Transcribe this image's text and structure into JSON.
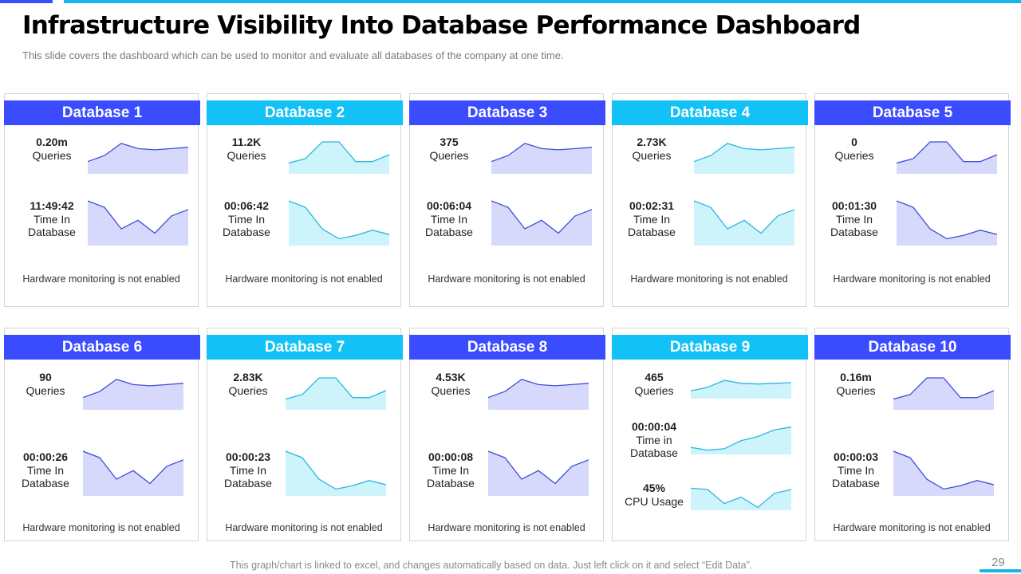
{
  "title": "Infrastructure Visibility Into Database Performance Dashboard",
  "subtitle": "This slide covers the dashboard which can be used to monitor and evaluate all databases of the company at one time.",
  "footer_note": "This graph/chart is linked to excel, and changes automatically based on data. Just left click on it and select “Edit Data”.",
  "page_number": "29",
  "colors": {
    "accent_dark": "#3b4cff",
    "accent_light": "#12c1f5",
    "fill_dark": "#d6d9fb",
    "fill_light": "#cdf3fb",
    "line_dark": "#3f4fd6",
    "line_light": "#29b8e0"
  },
  "sparkline_shapes": {
    "queries_a": [
      0.35,
      0.55,
      0.95,
      0.78,
      0.74,
      0.78,
      0.82
    ],
    "queries_b": [
      0.3,
      0.45,
      1.0,
      1.0,
      0.35,
      0.35,
      0.58
    ],
    "time_a": [
      1.0,
      0.85,
      0.35,
      0.55,
      0.25,
      0.65,
      0.8
    ],
    "time_b": [
      1.0,
      0.85,
      0.35,
      0.12,
      0.2,
      0.32,
      0.22
    ],
    "time_up": [
      0.2,
      0.1,
      0.15,
      0.45,
      0.6,
      0.85,
      0.95
    ],
    "cpu": [
      0.8,
      0.75,
      0.2,
      0.45,
      0.05,
      0.6,
      0.75
    ]
  },
  "databases": [
    {
      "name": "Database 1",
      "queries": "0.20m",
      "queries_label": "Queries",
      "time": "11:49:42",
      "time_label_1": "Time In",
      "time_label_2": "Database",
      "hw": "Hardware monitoring is not enabled"
    },
    {
      "name": "Database 2",
      "queries": "11.2K",
      "queries_label": "Queries",
      "time": "00:06:42",
      "time_label_1": "Time In",
      "time_label_2": "Database",
      "hw": "Hardware monitoring is not enabled"
    },
    {
      "name": "Database 3",
      "queries": "375",
      "queries_label": "Queries",
      "time": "00:06:04",
      "time_label_1": "Time In",
      "time_label_2": "Database",
      "hw": "Hardware monitoring is not enabled"
    },
    {
      "name": "Database 4",
      "queries": "2.73K",
      "queries_label": "Queries",
      "time": "00:02:31",
      "time_label_1": "Time In",
      "time_label_2": "Database",
      "hw": "Hardware monitoring is not enabled"
    },
    {
      "name": "Database 5",
      "queries": "0",
      "queries_label": "Queries",
      "time": "00:01:30",
      "time_label_1": "Time In",
      "time_label_2": "Database",
      "hw": "Hardware monitoring is not enabled"
    },
    {
      "name": "Database 6",
      "queries": "90",
      "queries_label": "Queries",
      "time": "00:00:26",
      "time_label_1": "Time In",
      "time_label_2": "Database",
      "hw": "Hardware monitoring is not enabled"
    },
    {
      "name": "Database 7",
      "queries": "2.83K",
      "queries_label": "Queries",
      "time": "00:00:23",
      "time_label_1": "Time In",
      "time_label_2": "Database",
      "hw": "Hardware monitoring is not enabled"
    },
    {
      "name": "Database 8",
      "queries": "4.53K",
      "queries_label": "Queries",
      "time": "00:00:08",
      "time_label_1": "Time In",
      "time_label_2": "Database",
      "hw": "Hardware monitoring is not enabled"
    },
    {
      "name": "Database 9",
      "queries": "465",
      "queries_label": "Queries",
      "time": "00:00:04",
      "time_label_1": "Time in",
      "time_label_2": "Database",
      "cpu": "45%",
      "cpu_label": "CPU Usage"
    },
    {
      "name": "Database 10",
      "queries": "0.16m",
      "queries_label": "Queries",
      "time": "00:00:03",
      "time_label_1": "Time In",
      "time_label_2": "Database",
      "hw": "Hardware monitoring is not enabled"
    }
  ]
}
